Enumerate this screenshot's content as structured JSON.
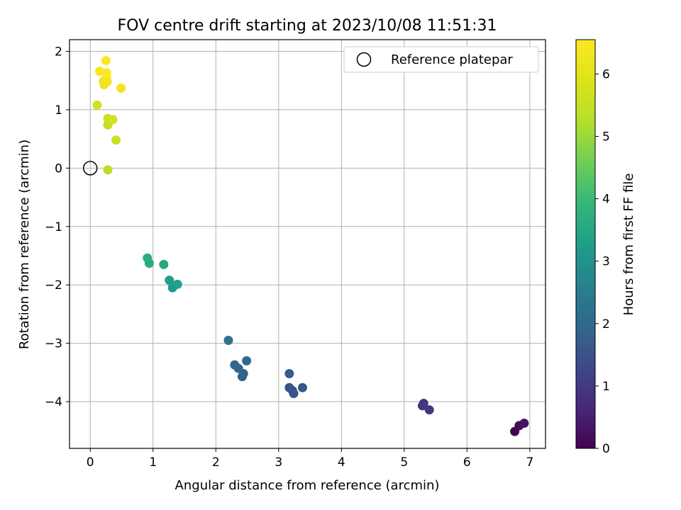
{
  "chart_data": {
    "type": "scatter",
    "title": "FOV centre drift starting at 2023/10/08 11:51:31",
    "xlabel": "Angular distance from reference (arcmin)",
    "ylabel": "Rotation from reference (arcmin)",
    "xlim": [
      -0.33,
      7.25
    ],
    "ylim": [
      -4.8,
      2.2
    ],
    "xticks": [
      0,
      1,
      2,
      3,
      4,
      5,
      6,
      7
    ],
    "yticks": [
      -4,
      -3,
      -2,
      -1,
      0,
      1,
      2
    ],
    "grid": true,
    "legend": {
      "placement": "top-right",
      "entries": [
        "Reference platepar"
      ]
    },
    "reference_point": {
      "x": 0,
      "y": 0
    },
    "colorbar": {
      "label": "Hours from first FF file",
      "range": [
        0,
        6.55
      ],
      "ticks": [
        0,
        1,
        2,
        3,
        4,
        5,
        6
      ],
      "colormap": "viridis"
    },
    "points": [
      {
        "x": 6.76,
        "y": -4.51,
        "hours": 0.0
      },
      {
        "x": 6.83,
        "y": -4.41,
        "hours": 0.15
      },
      {
        "x": 6.91,
        "y": -4.37,
        "hours": 0.3
      },
      {
        "x": 5.29,
        "y": -4.07,
        "hours": 0.9
      },
      {
        "x": 5.31,
        "y": -4.03,
        "hours": 0.95
      },
      {
        "x": 5.4,
        "y": -4.14,
        "hours": 1.0
      },
      {
        "x": 3.17,
        "y": -3.76,
        "hours": 1.45
      },
      {
        "x": 3.24,
        "y": -3.86,
        "hours": 1.5
      },
      {
        "x": 3.22,
        "y": -3.81,
        "hours": 1.55
      },
      {
        "x": 3.38,
        "y": -3.76,
        "hours": 1.6
      },
      {
        "x": 3.17,
        "y": -3.52,
        "hours": 1.7
      },
      {
        "x": 2.42,
        "y": -3.57,
        "hours": 1.75
      },
      {
        "x": 2.44,
        "y": -3.52,
        "hours": 1.8
      },
      {
        "x": 2.36,
        "y": -3.43,
        "hours": 1.9
      },
      {
        "x": 2.3,
        "y": -3.37,
        "hours": 1.95
      },
      {
        "x": 2.49,
        "y": -3.3,
        "hours": 2.0
      },
      {
        "x": 2.2,
        "y": -2.95,
        "hours": 2.3
      },
      {
        "x": 1.31,
        "y": -2.05,
        "hours": 3.2
      },
      {
        "x": 1.26,
        "y": -1.92,
        "hours": 3.3
      },
      {
        "x": 1.39,
        "y": -1.99,
        "hours": 3.35
      },
      {
        "x": 1.17,
        "y": -1.65,
        "hours": 3.5
      },
      {
        "x": 0.94,
        "y": -1.63,
        "hours": 3.6
      },
      {
        "x": 0.91,
        "y": -1.54,
        "hours": 3.65
      },
      {
        "x": 0.28,
        "y": -0.03,
        "hours": 5.3
      },
      {
        "x": 0.41,
        "y": 0.48,
        "hours": 5.6
      },
      {
        "x": 0.28,
        "y": 0.74,
        "hours": 5.45
      },
      {
        "x": 0.28,
        "y": 0.85,
        "hours": 5.55
      },
      {
        "x": 0.36,
        "y": 0.83,
        "hours": 5.7
      },
      {
        "x": 0.11,
        "y": 1.08,
        "hours": 5.75
      },
      {
        "x": 0.49,
        "y": 1.37,
        "hours": 6.3
      },
      {
        "x": 0.21,
        "y": 1.49,
        "hours": 6.2
      },
      {
        "x": 0.22,
        "y": 1.43,
        "hours": 6.25
      },
      {
        "x": 0.27,
        "y": 1.48,
        "hours": 6.35
      },
      {
        "x": 0.26,
        "y": 1.55,
        "hours": 6.4
      },
      {
        "x": 0.15,
        "y": 1.66,
        "hours": 6.45
      },
      {
        "x": 0.26,
        "y": 1.63,
        "hours": 6.5
      },
      {
        "x": 0.25,
        "y": 1.84,
        "hours": 6.55
      }
    ]
  }
}
